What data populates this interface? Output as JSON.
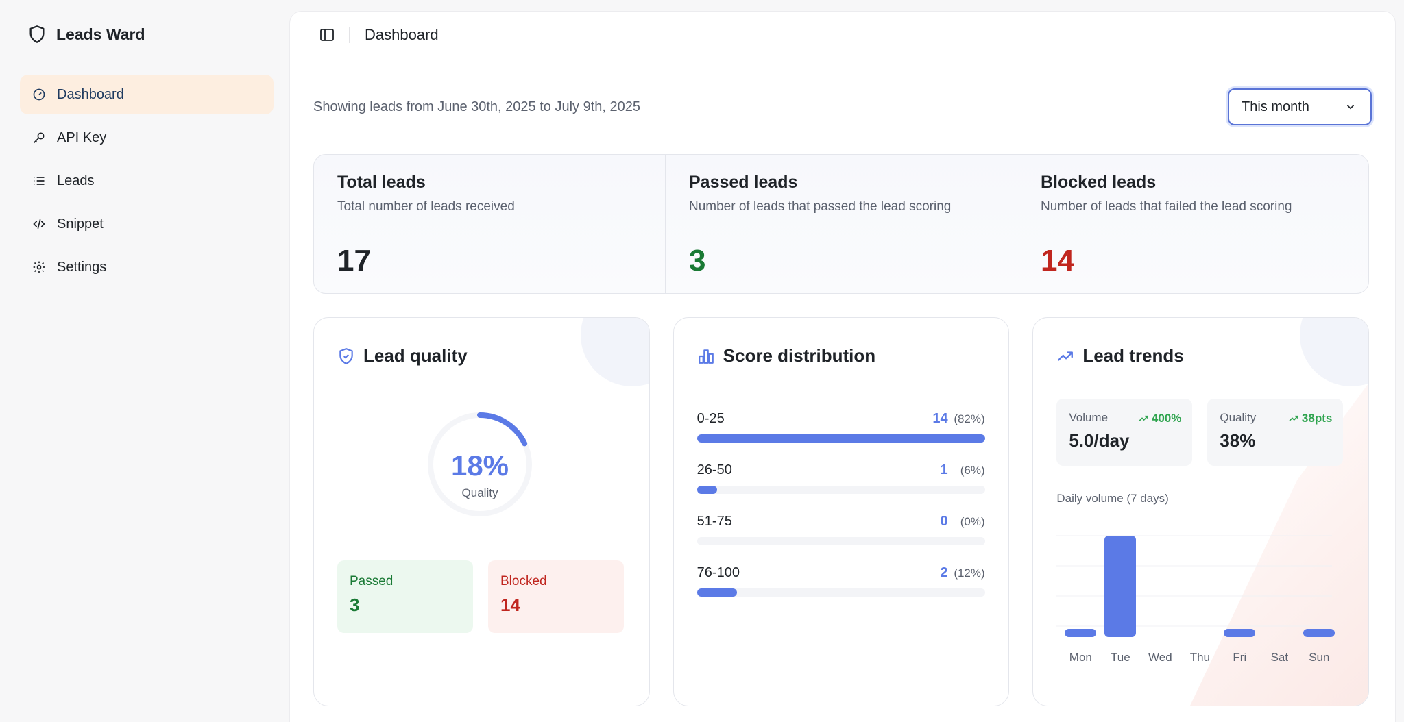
{
  "brand": {
    "name": "Leads Ward"
  },
  "nav": [
    {
      "label": "Dashboard",
      "icon": "gauge-icon",
      "active": true
    },
    {
      "label": "API Key",
      "icon": "key-icon"
    },
    {
      "label": "Leads",
      "icon": "list-icon"
    },
    {
      "label": "Snippet",
      "icon": "code-icon"
    },
    {
      "label": "Settings",
      "icon": "gear-icon"
    }
  ],
  "header": {
    "title": "Dashboard"
  },
  "range_text": "Showing leads from June 30th, 2025 to July 9th, 2025",
  "period_select": {
    "value": "This month"
  },
  "stats": [
    {
      "title": "Total leads",
      "subtitle": "Total number of leads received",
      "value": "17",
      "color": "#1f2328"
    },
    {
      "title": "Passed leads",
      "subtitle": "Number of leads that passed the lead scoring",
      "value": "3",
      "color": "#1a7a35"
    },
    {
      "title": "Blocked leads",
      "subtitle": "Number of leads that failed the lead scoring",
      "value": "14",
      "color": "#c0261f"
    }
  ],
  "lead_quality": {
    "title": "Lead quality",
    "percent_label": "18%",
    "percent": 18,
    "sub_label": "Quality",
    "passed_label": "Passed",
    "passed_value": "3",
    "blocked_label": "Blocked",
    "blocked_value": "14"
  },
  "score_distribution": {
    "title": "Score distribution",
    "rows": [
      {
        "range": "0-25",
        "count": "14",
        "pct": "(82%)",
        "fraction": 1.0
      },
      {
        "range": "26-50",
        "count": "1",
        "pct": "(6%)",
        "fraction": 0.07
      },
      {
        "range": "51-75",
        "count": "0",
        "pct": "(0%)",
        "fraction": 0
      },
      {
        "range": "76-100",
        "count": "2",
        "pct": "(12%)",
        "fraction": 0.14
      }
    ]
  },
  "lead_trends": {
    "title": "Lead trends",
    "volume": {
      "label": "Volume",
      "delta": "400%",
      "value": "5.0/day"
    },
    "quality": {
      "label": "Quality",
      "delta": "38pts",
      "value": "38%"
    },
    "daily_label": "Daily volume (7 days)",
    "chart_data": {
      "type": "bar",
      "categories": [
        "Mon",
        "Tue",
        "Wed",
        "Thu",
        "Fri",
        "Sat",
        "Sun"
      ],
      "values": [
        1,
        13,
        0,
        0,
        1,
        0,
        1
      ],
      "ylim": [
        0,
        13
      ],
      "color": "#5b7ae6"
    }
  },
  "colors": {
    "accent": "#5b7ae6",
    "pass": "#1a7a35",
    "block": "#c0261f"
  }
}
